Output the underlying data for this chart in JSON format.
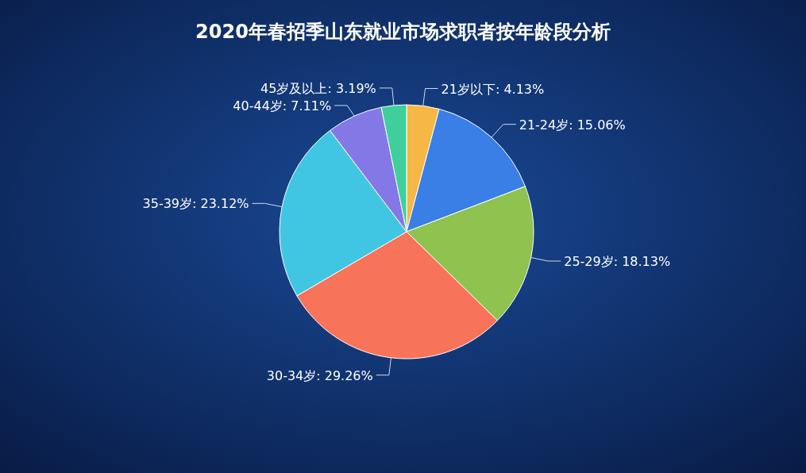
{
  "chart_data": {
    "type": "pie",
    "title": "2020年春招季山东就业市场求职者按年龄段分析",
    "categories": [
      "21岁以下",
      "21-24岁",
      "25-29岁",
      "30-34岁",
      "35-39岁",
      "40-44岁",
      "45岁及以上"
    ],
    "values": [
      4.13,
      15.06,
      18.13,
      29.26,
      23.12,
      7.11,
      3.19
    ],
    "value_labels": [
      "4.13%",
      "15.06%",
      "18.13%",
      "29.26%",
      "23.12%",
      "7.11%",
      "3.19%"
    ],
    "colors": [
      "#f6b844",
      "#3a7fe6",
      "#8fc24e",
      "#f7735a",
      "#40c6e2",
      "#8478e6",
      "#3fcf9c"
    ]
  }
}
